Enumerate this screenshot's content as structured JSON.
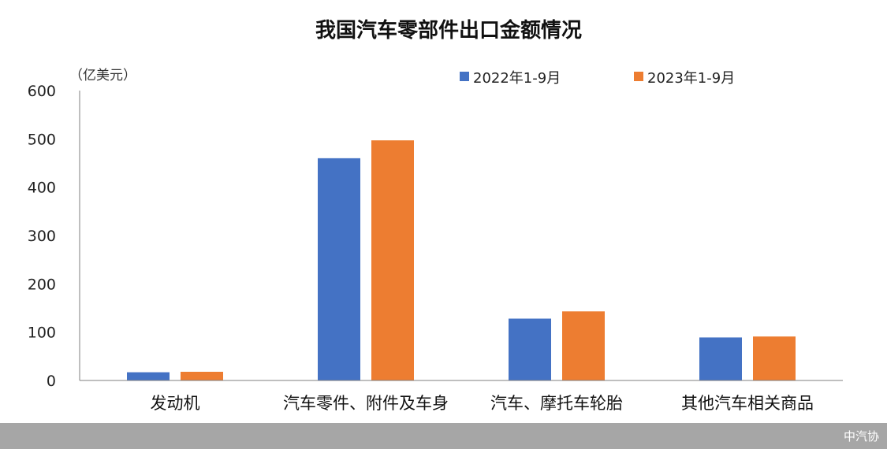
{
  "chart_data": {
    "type": "bar",
    "title": "我国汽车零部件出口金额情况",
    "unit_label": "（亿美元）",
    "categories": [
      "发动机",
      "汽车零件、附件及车身",
      "汽车、摩托车轮胎",
      "其他汽车相关商品"
    ],
    "series": [
      {
        "name": "2022年1-9月",
        "values": [
          17,
          460,
          128,
          89
        ],
        "color": "#4472C4"
      },
      {
        "name": "2023年1-9月",
        "values": [
          18,
          497,
          143,
          91
        ],
        "color": "#ED7D31"
      }
    ],
    "ylim": [
      0,
      600
    ],
    "yticks": [
      0,
      100,
      200,
      300,
      400,
      500,
      600
    ],
    "grid": false,
    "legend_position": "top-right"
  },
  "footer": {
    "source": "中汽协",
    "background": "#a6a6a6"
  }
}
